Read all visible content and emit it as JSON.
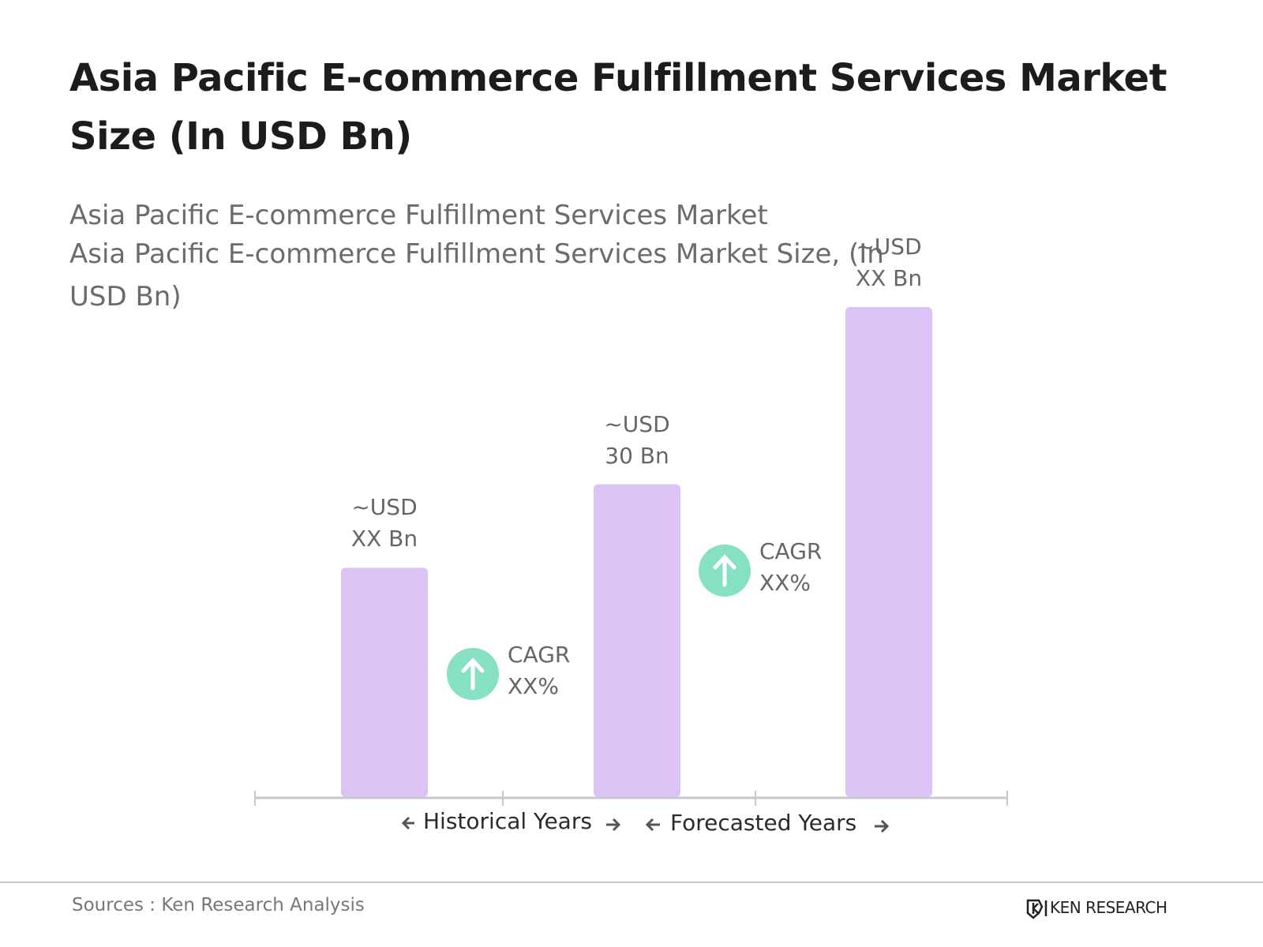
{
  "title": "Asia Pacific E-commerce Fulfillment Services Market Size (In USD Bn)",
  "subtitle": [
    "Asia Pacific E-commerce Fulfillment Services Market",
    "Asia Pacific E-commerce Fulfillment Services Market Size, (In USD Bn)"
  ],
  "chart_data": {
    "type": "bar",
    "values": [
      22,
      30,
      47
    ],
    "value_labels": [
      "~USD XX Bn",
      "~USD 30 Bn",
      "~USD XX Bn"
    ],
    "color": "#dcc3f5",
    "annotations": [
      {
        "label": "CAGR",
        "value": "XX%"
      },
      {
        "label": "CAGR",
        "value": "XX%"
      }
    ],
    "period_labels": [
      "Historical Years",
      "Forecasted Years"
    ]
  },
  "footer": {
    "source": "Sources : Ken Research Analysis",
    "logo": "KEN RESEARCH"
  }
}
